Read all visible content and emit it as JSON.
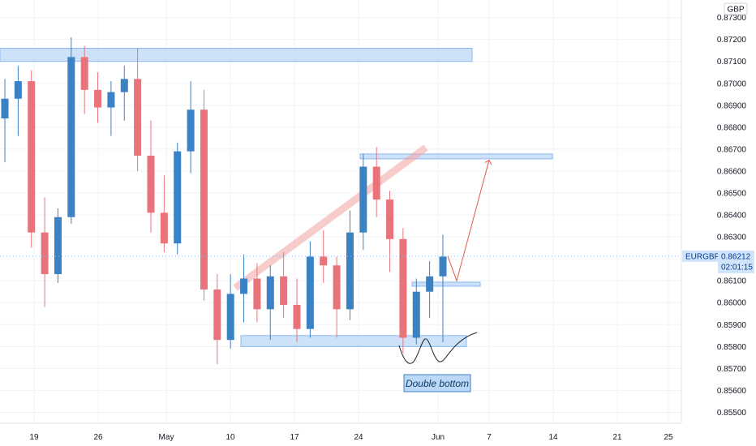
{
  "chart_data": {
    "type": "candlestick",
    "symbol": "EURGBP",
    "currency": "GBP",
    "last_price": "0.86212",
    "countdown": "02:01:15",
    "y_ticks": [
      "0.87300",
      "0.87200",
      "0.87100",
      "0.87000",
      "0.86900",
      "0.86800",
      "0.86700",
      "0.86600",
      "0.86500",
      "0.86400",
      "0.86300",
      "0.86200",
      "0.86100",
      "0.86000",
      "0.85900",
      "0.85800",
      "0.85700",
      "0.85600",
      "0.85500"
    ],
    "x_ticks": [
      "19",
      "26",
      "May",
      "10",
      "17",
      "24",
      "Jun",
      "7",
      "14",
      "21",
      "25"
    ],
    "ylim": [
      0.8545,
      0.8738
    ],
    "annotation": "Double bottom",
    "zones": [
      {
        "from": "19",
        "to": "Jun",
        "low": 0.871,
        "high": 0.8716
      },
      {
        "from": "24",
        "to": "Jun",
        "low": 0.86661,
        "high": 0.86678
      },
      {
        "from": "10",
        "to": "Jun",
        "low": 0.858,
        "high": 0.8585
      }
    ],
    "colors": {
      "up": "#3b82c4",
      "down": "#e8737b",
      "zone": "#bcd8f7",
      "zone_border": "#8ab8ee",
      "channel": "#f4a3a3",
      "projection": "#e05a4e",
      "price_line": "#8ab8ee"
    },
    "series": [
      {
        "date": "19",
        "open": 0.8684,
        "high": 0.8702,
        "low": 0.8664,
        "close": 0.8693
      },
      {
        "date": "20",
        "open": 0.8693,
        "high": 0.8708,
        "low": 0.8676,
        "close": 0.8701
      },
      {
        "date": "21",
        "open": 0.8701,
        "high": 0.8706,
        "low": 0.8625,
        "close": 0.8632
      },
      {
        "date": "22",
        "open": 0.8632,
        "high": 0.8648,
        "low": 0.8598,
        "close": 0.8613
      },
      {
        "date": "23",
        "open": 0.8613,
        "high": 0.8643,
        "low": 0.8609,
        "close": 0.8639
      },
      {
        "date": "26",
        "open": 0.8639,
        "high": 0.8721,
        "low": 0.8636,
        "close": 0.8712
      },
      {
        "date": "27",
        "open": 0.8712,
        "high": 0.8717,
        "low": 0.8686,
        "close": 0.8697
      },
      {
        "date": "28",
        "open": 0.8697,
        "high": 0.8705,
        "low": 0.8682,
        "close": 0.8689
      },
      {
        "date": "29",
        "open": 0.8689,
        "high": 0.8701,
        "low": 0.8676,
        "close": 0.8696
      },
      {
        "date": "30",
        "open": 0.8696,
        "high": 0.8708,
        "low": 0.8683,
        "close": 0.8702
      },
      {
        "date": "May 3",
        "open": 0.8702,
        "high": 0.8716,
        "low": 0.866,
        "close": 0.8667
      },
      {
        "date": "May 4",
        "open": 0.8667,
        "high": 0.8683,
        "low": 0.8632,
        "close": 0.8641
      },
      {
        "date": "May 5",
        "open": 0.8641,
        "high": 0.8658,
        "low": 0.8623,
        "close": 0.8627
      },
      {
        "date": "May 6",
        "open": 0.8627,
        "high": 0.8673,
        "low": 0.8622,
        "close": 0.8669
      },
      {
        "date": "May 7",
        "open": 0.8669,
        "high": 0.8701,
        "low": 0.8659,
        "close": 0.8688
      },
      {
        "date": "10",
        "open": 0.8688,
        "high": 0.8697,
        "low": 0.8601,
        "close": 0.8606
      },
      {
        "date": "11",
        "open": 0.8606,
        "high": 0.8613,
        "low": 0.8572,
        "close": 0.8583
      },
      {
        "date": "12",
        "open": 0.8583,
        "high": 0.8613,
        "low": 0.8579,
        "close": 0.8604
      },
      {
        "date": "13",
        "open": 0.8604,
        "high": 0.8622,
        "low": 0.8591,
        "close": 0.8611
      },
      {
        "date": "14",
        "open": 0.8611,
        "high": 0.8618,
        "low": 0.8591,
        "close": 0.8597
      },
      {
        "date": "17",
        "open": 0.8597,
        "high": 0.8617,
        "low": 0.8583,
        "close": 0.8612
      },
      {
        "date": "18",
        "open": 0.8612,
        "high": 0.8623,
        "low": 0.8593,
        "close": 0.8599
      },
      {
        "date": "19",
        "open": 0.8599,
        "high": 0.8611,
        "low": 0.8582,
        "close": 0.8588
      },
      {
        "date": "20",
        "open": 0.8588,
        "high": 0.8628,
        "low": 0.8584,
        "close": 0.8621
      },
      {
        "date": "21",
        "open": 0.8621,
        "high": 0.8633,
        "low": 0.8609,
        "close": 0.8617
      },
      {
        "date": "24",
        "open": 0.8617,
        "high": 0.8621,
        "low": 0.8584,
        "close": 0.8597
      },
      {
        "date": "25",
        "open": 0.8597,
        "high": 0.8642,
        "low": 0.8592,
        "close": 0.8632
      },
      {
        "date": "26",
        "open": 0.8632,
        "high": 0.8668,
        "low": 0.8624,
        "close": 0.8662
      },
      {
        "date": "27",
        "open": 0.8662,
        "high": 0.8671,
        "low": 0.8639,
        "close": 0.8647
      },
      {
        "date": "28",
        "open": 0.8647,
        "high": 0.8651,
        "low": 0.8614,
        "close": 0.8629
      },
      {
        "date": "31",
        "open": 0.8629,
        "high": 0.8634,
        "low": 0.8577,
        "close": 0.8584
      },
      {
        "date": "Jun 1",
        "open": 0.8584,
        "high": 0.8611,
        "low": 0.8581,
        "close": 0.8605
      },
      {
        "date": "Jun 2",
        "open": 0.8605,
        "high": 0.8619,
        "low": 0.8593,
        "close": 0.8612
      },
      {
        "date": "Jun 3",
        "open": 0.8612,
        "high": 0.8631,
        "low": 0.8582,
        "close": 0.8621
      }
    ],
    "projection": [
      {
        "date": "Jun 4",
        "value": 0.86212
      },
      {
        "date": "Jun 6",
        "value": 0.861
      },
      {
        "date": "Jun 14",
        "value": 0.8665
      }
    ]
  }
}
